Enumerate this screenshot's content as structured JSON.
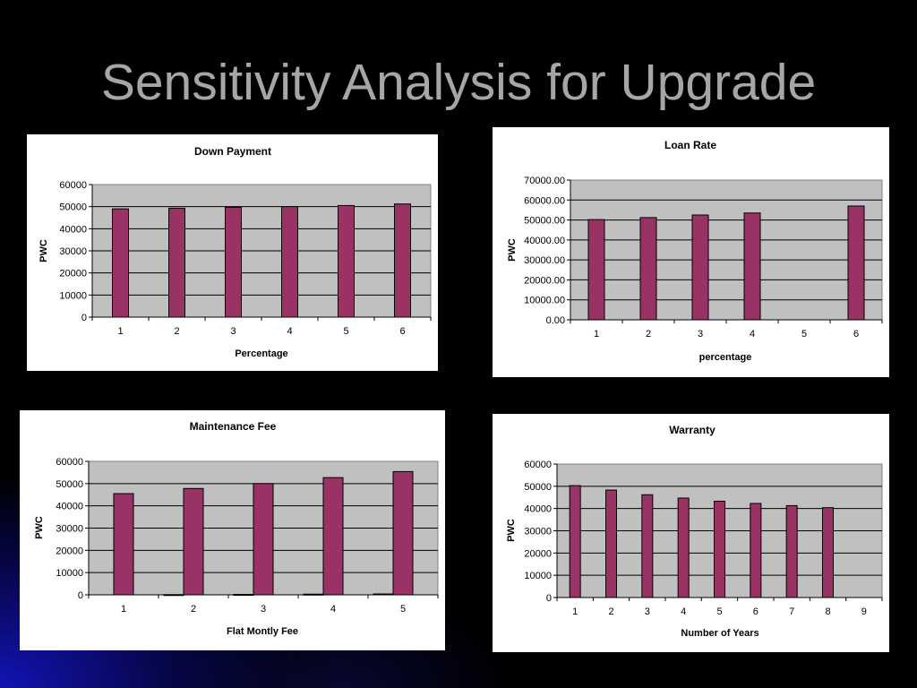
{
  "slide": {
    "title": "Sensitivity Analysis for Upgrade"
  },
  "colors": {
    "bar": "#993366",
    "plot_area": "#c0c0c0",
    "background": "#000000"
  },
  "chart_data": [
    {
      "type": "bar",
      "title": "Down Payment",
      "xlabel": "Percentage",
      "ylabel": "PWC",
      "categories": [
        "1",
        "2",
        "3",
        "4",
        "5",
        "6"
      ],
      "values": [
        49000,
        49300,
        49700,
        50000,
        50500,
        51200
      ],
      "ylim": [
        0,
        60000
      ],
      "yticks": [
        "0",
        "10000",
        "20000",
        "30000",
        "40000",
        "50000",
        "60000"
      ],
      "grid": true,
      "legend": "none"
    },
    {
      "type": "bar",
      "title": "Loan Rate",
      "xlabel": "percentage",
      "ylabel": "PWC",
      "categories": [
        "1",
        "2",
        "3",
        "4",
        "5",
        "6"
      ],
      "values": [
        50200,
        51200,
        52500,
        53500,
        null,
        57000
      ],
      "ylim": [
        0,
        70000
      ],
      "yticks": [
        "0.00",
        "10000.00",
        "20000.00",
        "30000.00",
        "40000.00",
        "50000.00",
        "60000.00",
        "70000.00"
      ],
      "grid": true,
      "legend": "none"
    },
    {
      "type": "bar",
      "title": "Maintenance Fee",
      "xlabel": "Flat Montly Fee",
      "ylabel": "PWC",
      "categories": [
        "1",
        "2",
        "3",
        "4",
        "5"
      ],
      "values": [
        45500,
        47800,
        50000,
        52700,
        55400
      ],
      "secondary_values": [
        0,
        100,
        200,
        300,
        400
      ],
      "ylim": [
        0,
        60000
      ],
      "yticks": [
        "0",
        "10000",
        "20000",
        "30000",
        "40000",
        "50000",
        "60000"
      ],
      "grid": true,
      "legend": "none"
    },
    {
      "type": "bar",
      "title": "Warranty",
      "xlabel": "Number of Years",
      "ylabel": "PWC",
      "categories": [
        "1",
        "2",
        "3",
        "4",
        "5",
        "6",
        "7",
        "8",
        "9"
      ],
      "values": [
        50300,
        48300,
        46200,
        44700,
        43300,
        42300,
        41300,
        40400,
        null
      ],
      "ylim": [
        0,
        60000
      ],
      "yticks": [
        "0",
        "10000",
        "20000",
        "30000",
        "40000",
        "50000",
        "60000"
      ],
      "grid": true,
      "legend": "none"
    }
  ]
}
